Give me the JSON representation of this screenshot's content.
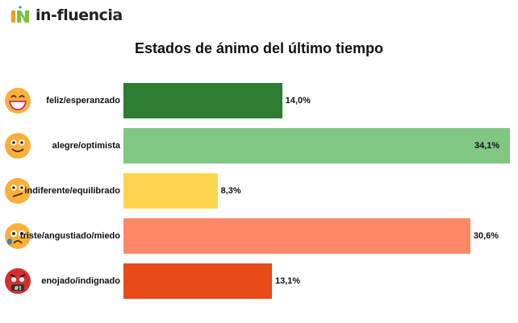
{
  "brand": {
    "name": "in-fluencia"
  },
  "chart_data": {
    "type": "bar",
    "orientation": "horizontal",
    "title": "Estados de ánimo del último tiempo",
    "categories": [
      "feliz/esperanzado",
      "alegre/optimista",
      "indiferente/equilibrado",
      "triste/angustiado/miedo",
      "enojado/indignado"
    ],
    "values": [
      14.0,
      34.1,
      8.3,
      30.6,
      13.1
    ],
    "value_labels": [
      "14,0%",
      "34,1%",
      "8,3%",
      "30,6%",
      "13,1%"
    ],
    "colors": [
      "#2e7d32",
      "#81c784",
      "#ffd54f",
      "#ff8a65",
      "#e64a19"
    ],
    "icons": [
      "grinning-face-icon",
      "smiling-face-icon",
      "confused-face-icon",
      "sad-tear-face-icon",
      "angry-cursing-face-icon"
    ],
    "xlim": [
      0,
      34.1
    ],
    "grid": false
  }
}
